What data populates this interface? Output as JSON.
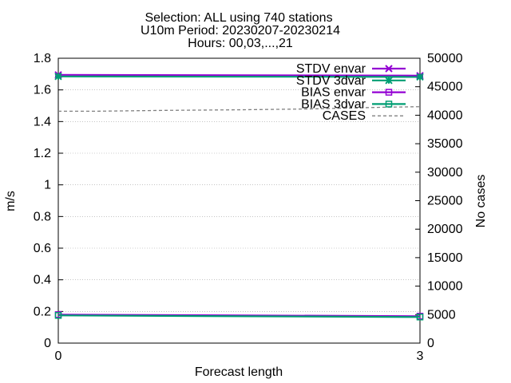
{
  "chart_data": {
    "type": "line",
    "title_lines": [
      "Selection: ALL using   740 stations",
      "U10m   Period: 20230207-20230214",
      "Hours: 00,03,...,21"
    ],
    "xlabel": "Forecast length",
    "ylabel": "m/s",
    "y2label": "No cases",
    "x": [
      0,
      3
    ],
    "x_ticks": [
      0,
      3
    ],
    "xlim": [
      0,
      3
    ],
    "ylim": [
      0,
      1.8
    ],
    "y_ticks": [
      0,
      0.2,
      0.4,
      0.6,
      0.8,
      1,
      1.2,
      1.4,
      1.6,
      1.8
    ],
    "y2lim": [
      0,
      50000
    ],
    "y2_ticks": [
      0,
      5000,
      10000,
      15000,
      20000,
      25000,
      30000,
      35000,
      40000,
      45000,
      50000
    ],
    "grid": true,
    "legend_position": "top-right",
    "series": [
      {
        "name": "STDV envar",
        "axis": "y",
        "color": "#9400d3",
        "marker": "x-star",
        "dash": "solid",
        "x": [
          0,
          3
        ],
        "values": [
          1.695,
          1.69
        ]
      },
      {
        "name": "STDV 3dvar",
        "axis": "y",
        "color": "#009e73",
        "marker": "star",
        "dash": "solid",
        "x": [
          0,
          3
        ],
        "values": [
          1.685,
          1.682
        ]
      },
      {
        "name": "BIAS envar",
        "axis": "y",
        "color": "#9400d3",
        "marker": "square",
        "dash": "solid",
        "x": [
          0,
          3
        ],
        "values": [
          0.18,
          0.17
        ]
      },
      {
        "name": "BIAS 3dvar",
        "axis": "y",
        "color": "#009e73",
        "marker": "square",
        "dash": "solid",
        "x": [
          0,
          3
        ],
        "values": [
          0.175,
          0.165
        ]
      },
      {
        "name": "CASES",
        "axis": "y2",
        "color": "#808080",
        "marker": "none",
        "dash": "dashed",
        "x": [
          0,
          0.3,
          0.9,
          1.5,
          2.1,
          2.7,
          3
        ],
        "values": [
          40700,
          40700,
          40850,
          40950,
          41100,
          41400,
          41500
        ]
      }
    ]
  }
}
